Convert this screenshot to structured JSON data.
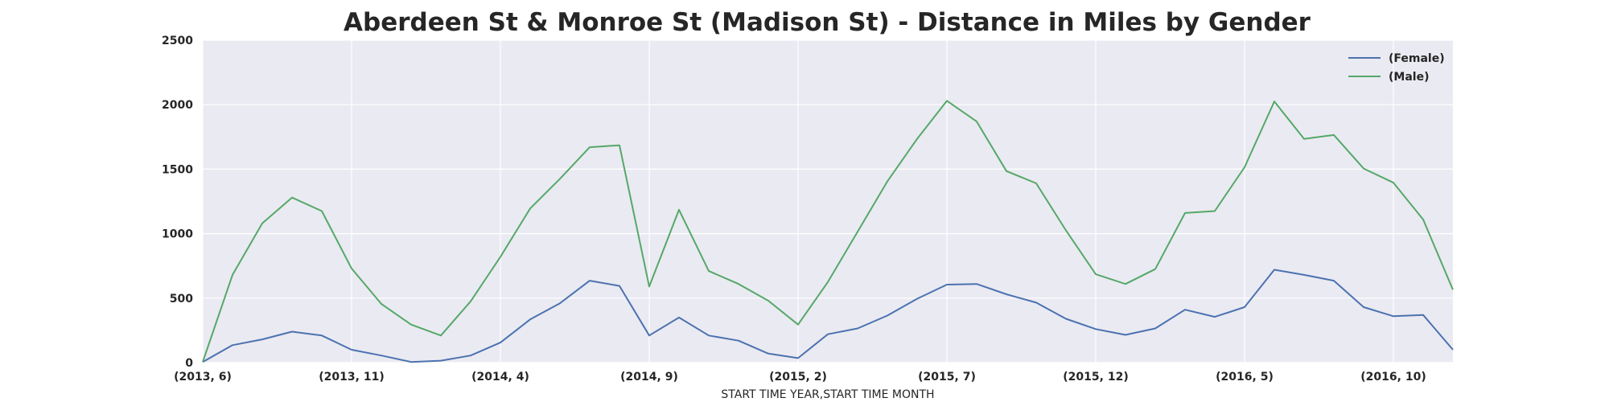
{
  "chart_data": {
    "type": "line",
    "title": "Aberdeen St & Monroe St (Madison St) - Distance in Miles by Gender",
    "xlabel": "START TIME YEAR,START TIME MONTH",
    "ylabel": "",
    "ylim": [
      0,
      2500
    ],
    "yticks": [
      0,
      500,
      1000,
      1500,
      2000,
      2500
    ],
    "grid": true,
    "legend_position": "top-right",
    "x": [
      "(2013, 6)",
      "(2013, 7)",
      "(2013, 8)",
      "(2013, 9)",
      "(2013, 10)",
      "(2013, 11)",
      "(2013, 12)",
      "(2014, 1)",
      "(2014, 2)",
      "(2014, 3)",
      "(2014, 4)",
      "(2014, 5)",
      "(2014, 6)",
      "(2014, 7)",
      "(2014, 8)",
      "(2014, 9)",
      "(2014, 10)",
      "(2014, 11)",
      "(2014, 12)",
      "(2015, 1)",
      "(2015, 2)",
      "(2015, 3)",
      "(2015, 4)",
      "(2015, 5)",
      "(2015, 6)",
      "(2015, 7)",
      "(2015, 8)",
      "(2015, 9)",
      "(2015, 10)",
      "(2015, 11)",
      "(2015, 12)",
      "(2016, 1)",
      "(2016, 2)",
      "(2016, 3)",
      "(2016, 4)",
      "(2016, 5)",
      "(2016, 6)",
      "(2016, 7)",
      "(2016, 8)",
      "(2016, 9)",
      "(2016, 10)",
      "(2016, 11)",
      "(2016, 12)"
    ],
    "xtick_labels": [
      "(2013, 6)",
      "(2013, 11)",
      "(2014, 4)",
      "(2014, 9)",
      "(2015, 2)",
      "(2015, 7)",
      "(2015, 12)",
      "(2016, 5)",
      "(2016, 10)"
    ],
    "series": [
      {
        "name": "(Female)",
        "color": "#4c72b0",
        "values": [
          5,
          135,
          180,
          240,
          210,
          100,
          55,
          5,
          15,
          55,
          155,
          335,
          460,
          635,
          595,
          210,
          350,
          210,
          170,
          70,
          35,
          220,
          265,
          365,
          495,
          605,
          610,
          530,
          465,
          340,
          260,
          215,
          265,
          410,
          355,
          430,
          720,
          680,
          635,
          430,
          360,
          370,
          100
        ]
      },
      {
        "name": "(Male)",
        "color": "#55a868",
        "values": [
          5,
          680,
          1080,
          1280,
          1175,
          730,
          455,
          295,
          210,
          475,
          820,
          1195,
          1425,
          1670,
          1685,
          590,
          1185,
          710,
          610,
          480,
          295,
          625,
          1015,
          1405,
          1735,
          2030,
          1870,
          1485,
          1390,
          1025,
          685,
          610,
          725,
          1160,
          1175,
          1515,
          2025,
          1735,
          1765,
          1505,
          1395,
          1110,
          565
        ]
      }
    ]
  }
}
